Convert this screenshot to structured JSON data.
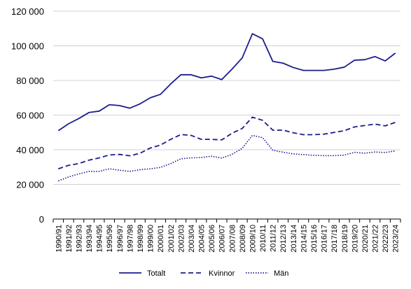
{
  "chart_data": {
    "type": "line",
    "title": "",
    "xlabel": "",
    "ylabel": "",
    "ylim": [
      0,
      120000
    ],
    "yticks": [
      0,
      20000,
      40000,
      60000,
      80000,
      100000,
      120000
    ],
    "ytick_labels": [
      "0",
      "20 000",
      "40 000",
      "60 000",
      "80 000",
      "100 000",
      "120 000"
    ],
    "grid": "horizontal",
    "legend_position": "bottom",
    "categories": [
      "1990/91",
      "1991/92",
      "1992/93",
      "1993/94",
      "1994/95",
      "1995/96",
      "1996/97",
      "1997/98",
      "1998/99",
      "1999/00",
      "2000/01",
      "2001/02",
      "2002/03",
      "2003/04",
      "2004/05",
      "2005/06",
      "2006/07",
      "2007/08",
      "2008/09",
      "2009/10",
      "2010/11",
      "2011/12",
      "2012/13",
      "2013/14",
      "2014/15",
      "2015/16",
      "2016/17",
      "2017/18",
      "2018/19",
      "2019/20",
      "2020/21",
      "2021/22",
      "2022/23",
      "2023/24"
    ],
    "series": [
      {
        "name": "Totalt",
        "color": "#1c1c8c",
        "dash": "solid",
        "values": [
          51000,
          55000,
          58000,
          61500,
          62300,
          66000,
          65500,
          64000,
          66500,
          70000,
          72000,
          78000,
          83300,
          83300,
          81500,
          82500,
          80500,
          86500,
          93000,
          107000,
          104000,
          91000,
          90000,
          87500,
          85800,
          85800,
          85800,
          86500,
          87700,
          91700,
          92000,
          93800,
          91300,
          95800
        ]
      },
      {
        "name": "Kvinnor",
        "color": "#1c1c8c",
        "dash": "dashed",
        "values": [
          29000,
          31000,
          32000,
          34000,
          35300,
          37000,
          37300,
          36500,
          38000,
          41000,
          42700,
          46000,
          48800,
          48300,
          46000,
          46000,
          45700,
          49500,
          52300,
          58800,
          57000,
          51300,
          51300,
          49800,
          48700,
          48700,
          49000,
          50000,
          51000,
          53200,
          54000,
          54800,
          53800,
          55800
        ]
      },
      {
        "name": "Män",
        "color": "#1c1c8c",
        "dash": "dotted",
        "values": [
          22000,
          24300,
          26000,
          27500,
          27500,
          29000,
          28200,
          27500,
          28500,
          29000,
          29800,
          32000,
          34800,
          35300,
          35500,
          36300,
          35200,
          37300,
          40800,
          48300,
          47000,
          39700,
          38600,
          37600,
          37200,
          36800,
          36600,
          36600,
          36900,
          38500,
          38000,
          38700,
          38400,
          39300
        ]
      }
    ]
  }
}
